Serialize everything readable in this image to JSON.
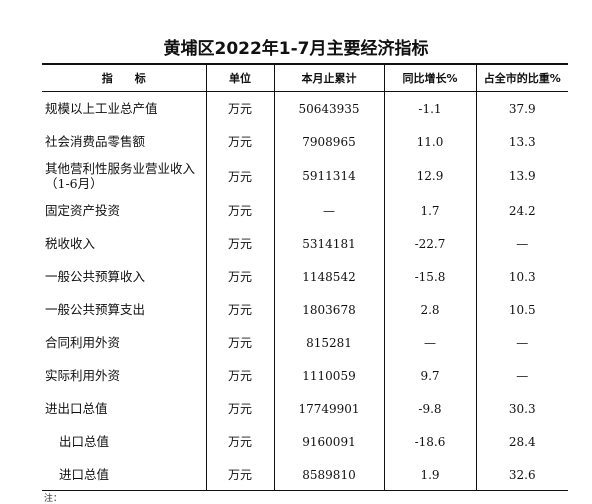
{
  "title": "黄埔区2022年1-7月主要经济指标",
  "headers": {
    "indicator": "指　　标",
    "unit": "单位",
    "cumulative": "本月止累计",
    "growth": "同比增长%",
    "share": "占全市的比重%"
  },
  "rows": [
    {
      "name": "规模以上工业总产值",
      "name2": "",
      "unit": "万元",
      "cumulative": "50643935",
      "growth": "-1.1",
      "share": "37.9"
    },
    {
      "name": "社会消费品零售额",
      "name2": "",
      "unit": "万元",
      "cumulative": "7908965",
      "growth": "11.0",
      "share": "13.3"
    },
    {
      "name": "其他营利性服务业营业收入",
      "name2": "（1-6月）",
      "unit": "万元",
      "cumulative": "5911314",
      "growth": "12.9",
      "share": "13.9"
    },
    {
      "name": "固定资产投资",
      "name2": "",
      "unit": "万元",
      "cumulative": "—",
      "growth": "1.7",
      "share": "24.2"
    },
    {
      "name": "税收收入",
      "name2": "",
      "unit": "万元",
      "cumulative": "5314181",
      "growth": "-22.7",
      "share": "—"
    },
    {
      "name": "一般公共预算收入",
      "name2": "",
      "unit": "万元",
      "cumulative": "1148542",
      "growth": "-15.8",
      "share": "10.3"
    },
    {
      "name": "一般公共预算支出",
      "name2": "",
      "unit": "万元",
      "cumulative": "1803678",
      "growth": "2.8",
      "share": "10.5"
    },
    {
      "name": "合同利用外资",
      "name2": "",
      "unit": "万元",
      "cumulative": "815281",
      "growth": "—",
      "share": "—"
    },
    {
      "name": "实际利用外资",
      "name2": "",
      "unit": "万元",
      "cumulative": "1110059",
      "growth": "9.7",
      "share": "—"
    },
    {
      "name": "进出口总值",
      "name2": "",
      "unit": "万元",
      "cumulative": "17749901",
      "growth": "-9.8",
      "share": "30.3"
    },
    {
      "name": "出口总值",
      "name2": "",
      "unit": "万元",
      "cumulative": "9160091",
      "growth": "-18.6",
      "share": "28.4",
      "indent": true
    },
    {
      "name": "进口总值",
      "name2": "",
      "unit": "万元",
      "cumulative": "8589810",
      "growth": "1.9",
      "share": "32.6",
      "indent": true
    }
  ],
  "footnote": "注："
}
